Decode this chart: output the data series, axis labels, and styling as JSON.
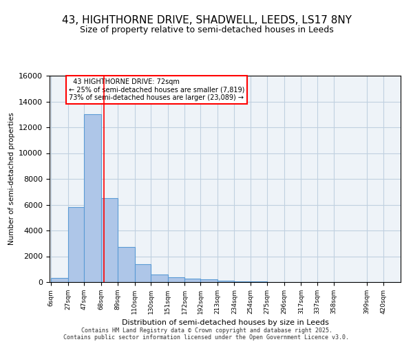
{
  "title_line1": "43, HIGHTHORNE DRIVE, SHADWELL, LEEDS, LS17 8NY",
  "title_line2": "Size of property relative to semi-detached houses in Leeds",
  "xlabel": "Distribution of semi-detached houses by size in Leeds",
  "ylabel": "Number of semi-detached properties",
  "categories": [
    "6sqm",
    "27sqm",
    "47sqm",
    "68sqm",
    "89sqm",
    "110sqm",
    "130sqm",
    "151sqm",
    "172sqm",
    "192sqm",
    "213sqm",
    "234sqm",
    "254sqm",
    "275sqm",
    "296sqm",
    "317sqm",
    "337sqm",
    "358sqm",
    "399sqm",
    "420sqm"
  ],
  "bar_edges": [
    6,
    27,
    47,
    68,
    89,
    110,
    130,
    151,
    172,
    192,
    213,
    234,
    254,
    275,
    296,
    317,
    337,
    358,
    399,
    420
  ],
  "values": [
    300,
    5800,
    13000,
    6500,
    2700,
    1400,
    600,
    350,
    250,
    200,
    100,
    50,
    30,
    20,
    10,
    5,
    3,
    2,
    1,
    0
  ],
  "bar_color": "#aec6e8",
  "bar_edge_color": "#5b9bd5",
  "property_line_x": 72,
  "property_sqm": 72,
  "property_label": "43 HIGHTHORNE DRIVE: 72sqm",
  "smaller_pct": "25%",
  "smaller_count": "7,819",
  "larger_pct": "73%",
  "larger_count": "23,089",
  "annotation_box_color": "#ff0000",
  "ylim": [
    0,
    16000
  ],
  "yticks": [
    0,
    2000,
    4000,
    6000,
    8000,
    10000,
    12000,
    14000,
    16000
  ],
  "footer_line1": "Contains HM Land Registry data © Crown copyright and database right 2025.",
  "footer_line2": "Contains public sector information licensed under the Open Government Licence v3.0.",
  "background_color": "#ffffff",
  "grid_color": "#c0d0e0"
}
